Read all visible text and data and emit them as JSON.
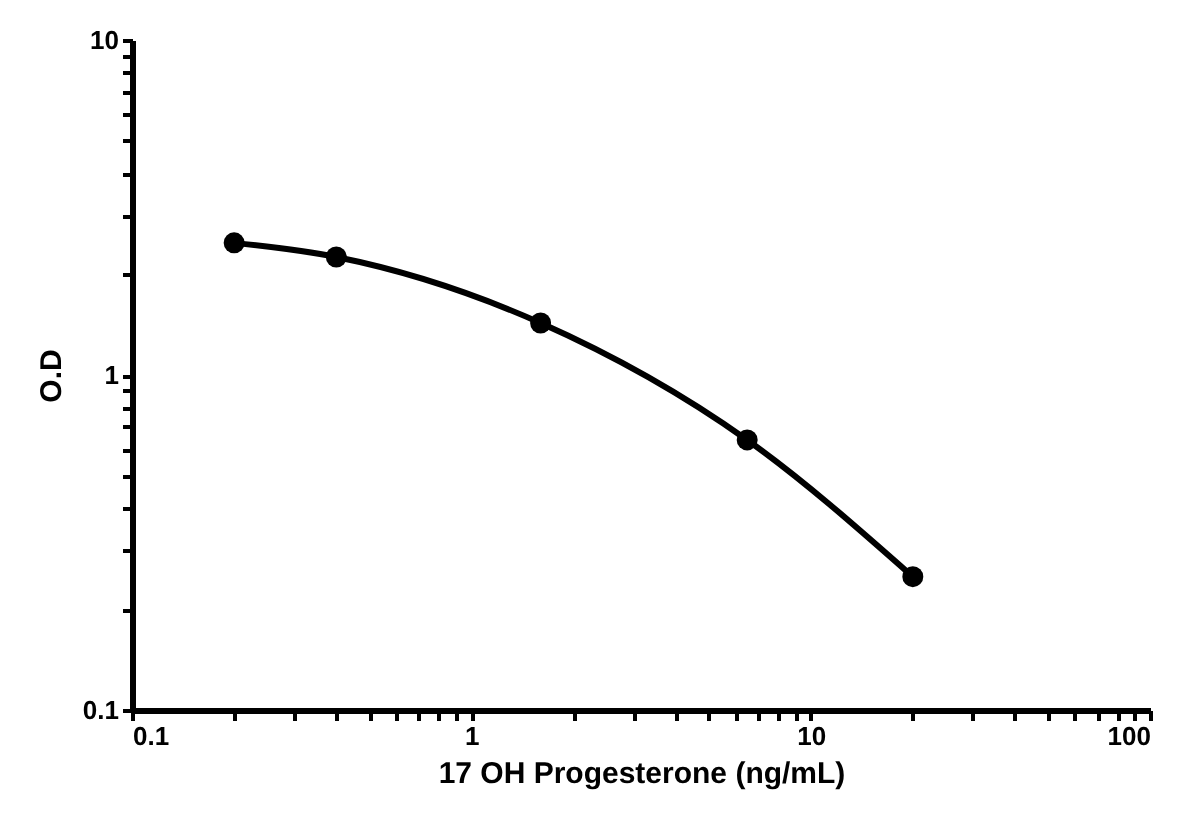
{
  "chart_data": {
    "type": "line",
    "xlabel": "17 OH Progesterone (ng/mL)",
    "ylabel": "O.D",
    "log": "xy",
    "marker": "circle",
    "line_style": "solid",
    "grid": false,
    "legend": false,
    "x": [
      0.2,
      0.4,
      1.6,
      6.5,
      20
    ],
    "series": [
      {
        "color": "#000000",
        "values": [
          2.48,
          2.25,
          1.43,
          0.64,
          0.25
        ]
      }
    ],
    "xlim": [
      0.1,
      100
    ],
    "ylim": [
      0.1,
      10
    ],
    "xticks": [
      0.1,
      {
        "value": 0.2,
        "label": null
      },
      {
        "value": 0.3,
        "label": null
      },
      {
        "value": 0.4,
        "label": null
      },
      {
        "value": 0.5,
        "label": null
      },
      {
        "value": 0.6,
        "label": null
      },
      {
        "value": 0.7,
        "label": null
      },
      {
        "value": 0.8,
        "label": null
      },
      {
        "value": 0.9,
        "label": null
      },
      1,
      {
        "value": 2,
        "label": null
      },
      {
        "value": 3,
        "label": null
      },
      {
        "value": 4,
        "label": null
      },
      {
        "value": 5,
        "label": null
      },
      {
        "value": 6,
        "label": null
      },
      {
        "value": 7,
        "label": null
      },
      {
        "value": 8,
        "label": null
      },
      {
        "value": 9,
        "label": null
      },
      10,
      {
        "value": 20,
        "label": null
      },
      {
        "value": 30,
        "label": null
      },
      {
        "value": 40,
        "label": null
      },
      {
        "value": 50,
        "label": null
      },
      {
        "value": 60,
        "label": null
      },
      {
        "value": 70,
        "label": null
      },
      {
        "value": 80,
        "label": null
      },
      {
        "value": 90,
        "label": null
      },
      100
    ],
    "yticks": [
      0.1,
      {
        "value": 0.2,
        "label": null
      },
      {
        "value": 0.3,
        "label": null
      },
      {
        "value": 0.4,
        "label": null
      },
      {
        "value": 0.5,
        "label": null
      },
      {
        "value": 0.6,
        "label": null
      },
      {
        "value": 0.7,
        "label": null
      },
      {
        "value": 0.8,
        "label": null
      },
      {
        "value": 0.9,
        "label": null
      },
      1,
      {
        "value": 2,
        "label": null
      },
      {
        "value": 3,
        "label": null
      },
      {
        "value": 4,
        "label": null
      },
      {
        "value": 5,
        "label": null
      },
      {
        "value": 6,
        "label": null
      },
      {
        "value": 7,
        "label": null
      },
      {
        "value": 8,
        "label": null
      },
      {
        "value": 9,
        "label": null
      },
      10
    ]
  }
}
